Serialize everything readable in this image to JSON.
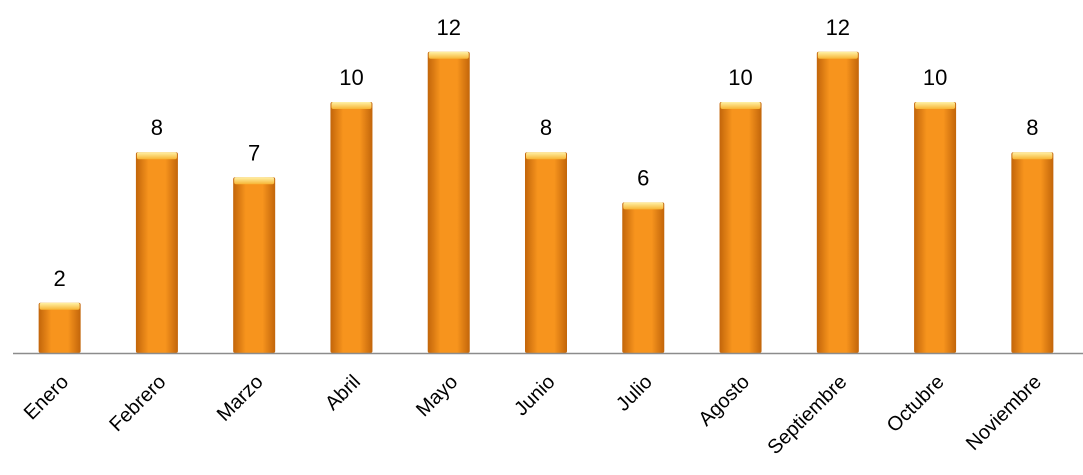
{
  "chart_data": {
    "type": "bar",
    "categories": [
      "Enero",
      "Febrero",
      "Marzo",
      "Abril",
      "Mayo",
      "Junio",
      "Julio",
      "Agosto",
      "Septiembre",
      "Octubre",
      "Noviembre"
    ],
    "values": [
      2,
      8,
      7,
      10,
      12,
      8,
      6,
      10,
      12,
      10,
      8
    ],
    "title": "",
    "xlabel": "",
    "ylabel": "",
    "ylim": [
      0,
      12
    ],
    "grid": false,
    "legend": "none",
    "data_labels": true,
    "bar_color": "#F7941D",
    "bar_highlight": "#FFE07A",
    "bar_shadow": "#C2650A",
    "axis_color": "#8C8C8C"
  }
}
